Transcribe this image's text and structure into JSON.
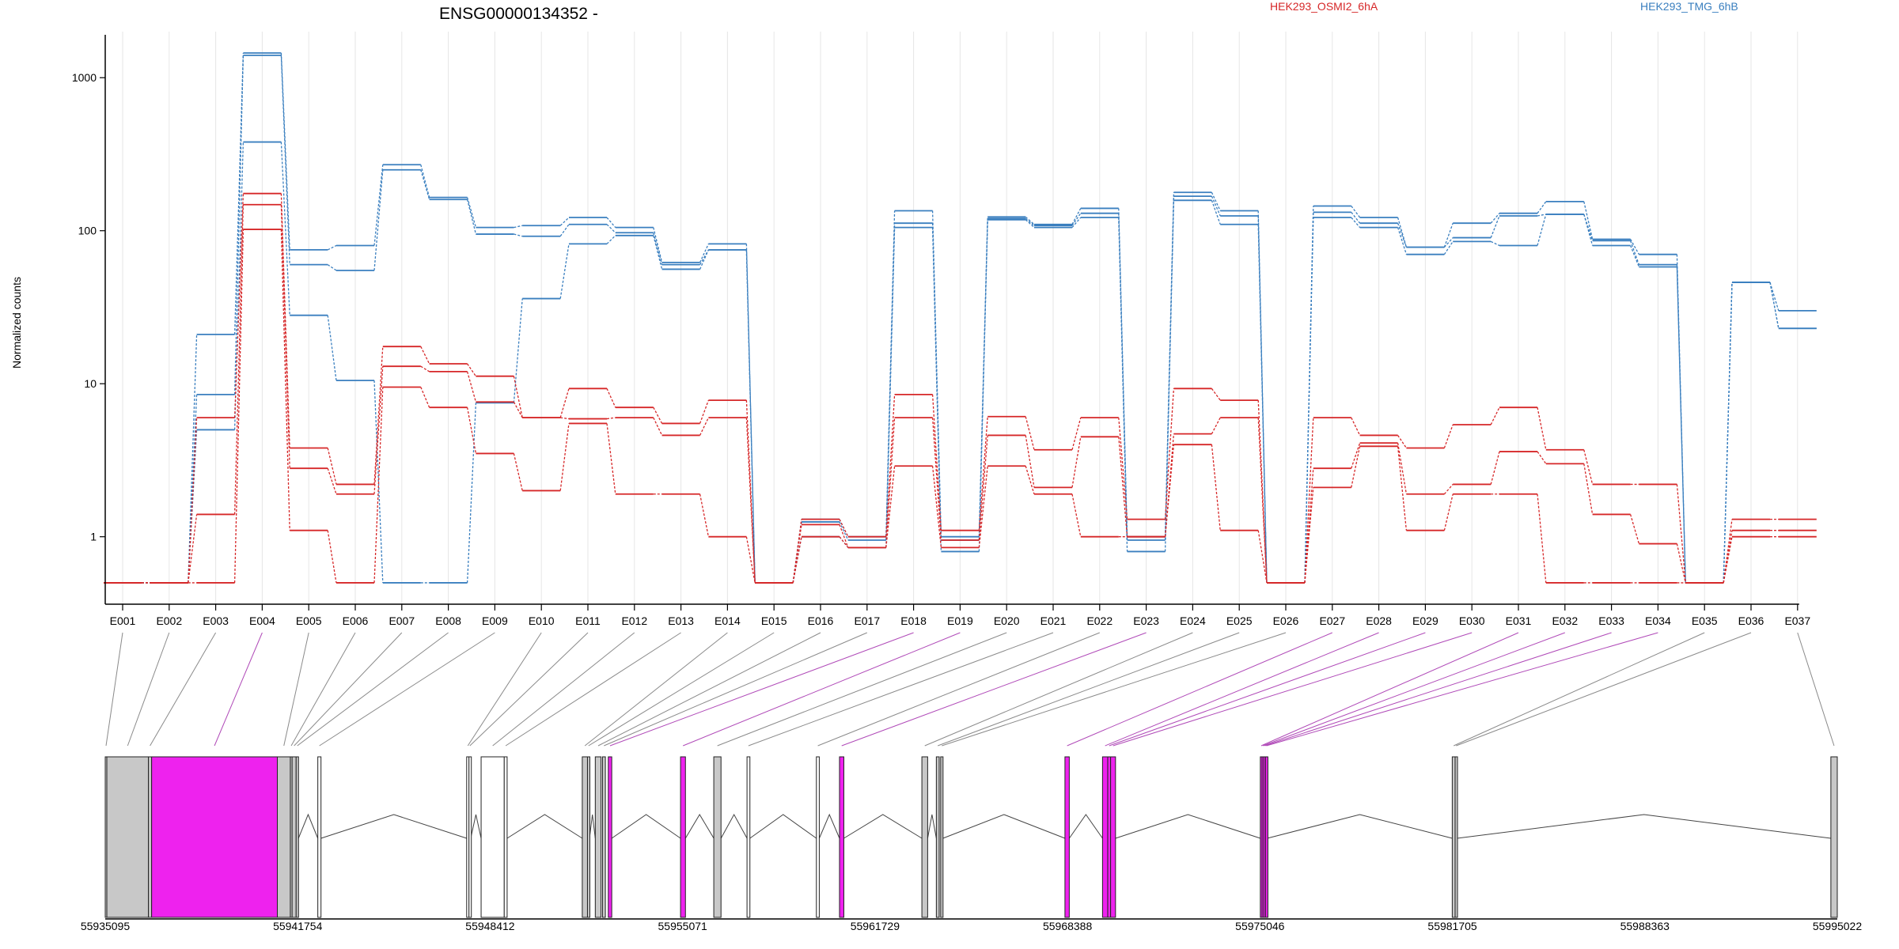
{
  "chart_data": {
    "type": "line",
    "title": "ENSG00000134352 -",
    "ylabel": "Normalized counts",
    "y_scale": "log",
    "y_ticks": [
      1,
      10,
      100,
      1000
    ],
    "y_tick_labels": [
      "1",
      "10",
      "100",
      "1000"
    ],
    "ylim": [
      0.38,
      2000
    ],
    "grid": "vertical lines",
    "legend": "top",
    "colors": {
      "OSMI2": "#d62728",
      "TMG": "#3a7fbf"
    },
    "categories": [
      "E001",
      "E002",
      "E003",
      "E004",
      "E005",
      "E006",
      "E007",
      "E008",
      "E009",
      "E010",
      "E011",
      "E012",
      "E013",
      "E014",
      "E015",
      "E016",
      "E017",
      "E018",
      "E019",
      "E020",
      "E021",
      "E022",
      "E023",
      "E024",
      "E025",
      "E026",
      "E027",
      "E028",
      "E029",
      "E030",
      "E031",
      "E032",
      "E033",
      "E034",
      "E035",
      "E036",
      "E037"
    ],
    "series": [
      {
        "name": "HEK293_TMG_6hB",
        "group": "TMG",
        "values": [
          0.5,
          0.5,
          21,
          1450,
          75,
          80,
          270,
          165,
          105,
          108,
          122,
          105,
          62,
          82,
          0.5,
          1.3,
          1.0,
          135,
          1.0,
          123,
          110,
          140,
          1.0,
          178,
          135,
          0.5,
          145,
          122,
          78,
          112,
          130,
          155,
          88,
          70,
          0.5,
          46,
          30
        ]
      },
      {
        "name": "",
        "group": "TMG",
        "values": [
          0.5,
          0.5,
          8.5,
          1400,
          60,
          55,
          250,
          160,
          95,
          92,
          110,
          97,
          60,
          75,
          0.5,
          1.25,
          0.95,
          112,
          0.95,
          120,
          108,
          130,
          0.95,
          168,
          125,
          0.5,
          132,
          112,
          78,
          90,
          125,
          128,
          86,
          60,
          0.5,
          46,
          23
        ]
      },
      {
        "name": "",
        "group": "TMG",
        "values": [
          0.5,
          0.5,
          5.0,
          380,
          28,
          10.5,
          0.5,
          0.5,
          7.5,
          36,
          82,
          93,
          56,
          75,
          0.5,
          1.0,
          0.85,
          105,
          0.8,
          118,
          105,
          122,
          0.8,
          158,
          110,
          0.5,
          122,
          105,
          70,
          85,
          80,
          128,
          80,
          58,
          0.5,
          46,
          23
        ]
      },
      {
        "name": "HEK293_OSMI2_6hA",
        "group": "OSMI2",
        "values": [
          0.5,
          0.5,
          6.0,
          175,
          3.8,
          2.2,
          17.5,
          13.5,
          11.2,
          6.0,
          9.3,
          7.0,
          5.5,
          7.8,
          0.5,
          1.3,
          1.0,
          8.5,
          1.1,
          6.1,
          3.7,
          6.0,
          1.3,
          9.3,
          7.8,
          0.5,
          6.0,
          4.6,
          3.8,
          5.4,
          7.0,
          3.7,
          2.2,
          2.2,
          0.5,
          1.3,
          1.3
        ]
      },
      {
        "name": "",
        "group": "OSMI2",
        "values": [
          0.5,
          0.5,
          1.4,
          148,
          2.8,
          1.9,
          13.0,
          12.0,
          7.6,
          6.0,
          5.9,
          6.0,
          4.6,
          6.0,
          0.5,
          1.2,
          0.85,
          6.0,
          0.95,
          4.6,
          2.1,
          4.5,
          1.0,
          4.7,
          6.0,
          0.5,
          2.8,
          4.1,
          1.9,
          2.2,
          3.6,
          3.0,
          1.4,
          0.9,
          0.5,
          1.1,
          1.1
        ]
      },
      {
        "name": "",
        "group": "OSMI2",
        "values": [
          0.5,
          0.5,
          0.5,
          102,
          1.1,
          0.5,
          9.5,
          7.0,
          3.5,
          2.0,
          5.5,
          1.9,
          1.9,
          1.0,
          0.5,
          1.0,
          0.85,
          2.9,
          0.85,
          2.9,
          1.9,
          1.0,
          1.0,
          4.0,
          1.1,
          0.5,
          2.1,
          3.9,
          1.1,
          1.9,
          1.9,
          0.5,
          0.5,
          0.5,
          0.5,
          1.0,
          1.0
        ]
      }
    ],
    "gene_model": {
      "genomic_ticks": [
        "55935095",
        "55941754",
        "55948412",
        "55955071",
        "55961729",
        "55968388",
        "55975046",
        "55981705",
        "55988363",
        "55995022"
      ],
      "exons": [
        {
          "id": "E001",
          "start": 55935095,
          "end": 55935150,
          "fill": "#c8c8c8",
          "highlight": false
        },
        {
          "id": "E002",
          "start": 55935150,
          "end": 55936590,
          "fill": "#c8c8c8",
          "highlight": false
        },
        {
          "id": "E003",
          "start": 55936590,
          "end": 55936700,
          "fill": "#c8c8c8",
          "highlight": false
        },
        {
          "id": "E004",
          "start": 55936700,
          "end": 55941050,
          "fill": "#ee22ee",
          "highlight": true
        },
        {
          "id": "E005",
          "start": 55941050,
          "end": 55941500,
          "fill": "#c8c8c8",
          "highlight": false
        },
        {
          "id": "E006",
          "start": 55941500,
          "end": 55941560,
          "fill": "#c8c8c8",
          "highlight": false
        },
        {
          "id": "E007",
          "start": 55941560,
          "end": 55941700,
          "fill": "#c8c8c8",
          "highlight": false
        },
        {
          "id": "E008",
          "start": 55941700,
          "end": 55941780,
          "fill": "#c8c8c8",
          "highlight": false
        },
        {
          "id": "E009",
          "start": 55942450,
          "end": 55942560,
          "fill": "#ffffff",
          "highlight": false
        },
        {
          "id": "E010",
          "start": 55947600,
          "end": 55947680,
          "fill": "#ffffff",
          "highlight": false
        },
        {
          "id": "E011",
          "start": 55947680,
          "end": 55947740,
          "fill": "#ffffff",
          "highlight": false
        },
        {
          "id": "E012",
          "start": 55948100,
          "end": 55948900,
          "fill": "#ffffff",
          "highlight": false
        },
        {
          "id": "E013",
          "start": 55948900,
          "end": 55949000,
          "fill": "#ffffff",
          "highlight": false
        },
        {
          "id": "E014",
          "start": 55951600,
          "end": 55951780,
          "fill": "#c8c8c8",
          "highlight": false
        },
        {
          "id": "E015",
          "start": 55951780,
          "end": 55951850,
          "fill": "#c8c8c8",
          "highlight": false
        },
        {
          "id": "E016",
          "start": 55952050,
          "end": 55952250,
          "fill": "#c8c8c8",
          "highlight": false
        },
        {
          "id": "E017",
          "start": 55952300,
          "end": 55952400,
          "fill": "#c8c8c8",
          "highlight": false
        },
        {
          "id": "E018",
          "start": 55952500,
          "end": 55952620,
          "fill": "#ee22ee",
          "highlight": true
        },
        {
          "id": "E019",
          "start": 55955000,
          "end": 55955170,
          "fill": "#ee22ee",
          "highlight": true
        },
        {
          "id": "E020",
          "start": 55956150,
          "end": 55956400,
          "fill": "#c8c8c8",
          "highlight": false
        },
        {
          "id": "E021",
          "start": 55957300,
          "end": 55957400,
          "fill": "#ffffff",
          "highlight": false
        },
        {
          "id": "E022",
          "start": 55959700,
          "end": 55959800,
          "fill": "#ffffff",
          "highlight": false
        },
        {
          "id": "E023",
          "start": 55960500,
          "end": 55960650,
          "fill": "#ee22ee",
          "highlight": true
        },
        {
          "id": "E024",
          "start": 55963350,
          "end": 55963550,
          "fill": "#c8c8c8",
          "highlight": false
        },
        {
          "id": "E025",
          "start": 55963850,
          "end": 55963950,
          "fill": "#c8c8c8",
          "highlight": false
        },
        {
          "id": "E026",
          "start": 55964000,
          "end": 55964080,
          "fill": "#c8c8c8",
          "highlight": false
        },
        {
          "id": "E027",
          "start": 55968300,
          "end": 55968450,
          "fill": "#ee22ee",
          "highlight": true
        },
        {
          "id": "E028",
          "start": 55969600,
          "end": 55969780,
          "fill": "#ee22ee",
          "highlight": true
        },
        {
          "id": "E029",
          "start": 55969780,
          "end": 55969880,
          "fill": "#ee22ee",
          "highlight": true
        },
        {
          "id": "E030",
          "start": 55969880,
          "end": 55970050,
          "fill": "#ee22ee",
          "highlight": true
        },
        {
          "id": "E031",
          "start": 55975060,
          "end": 55975120,
          "fill": "#ee22ee",
          "highlight": true
        },
        {
          "id": "E032",
          "start": 55975120,
          "end": 55975180,
          "fill": "#ee22ee",
          "highlight": true
        },
        {
          "id": "E033",
          "start": 55975180,
          "end": 55975240,
          "fill": "#ee22ee",
          "highlight": true
        },
        {
          "id": "E034",
          "start": 55975240,
          "end": 55975300,
          "fill": "#ee22ee",
          "highlight": true
        },
        {
          "id": "E035",
          "start": 55981700,
          "end": 55981800,
          "fill": "#c8c8c8",
          "highlight": false
        },
        {
          "id": "E036",
          "start": 55981800,
          "end": 55981870,
          "fill": "#c8c8c8",
          "highlight": false
        },
        {
          "id": "E037",
          "start": 55994800,
          "end": 55995022,
          "fill": "#c8c8c8",
          "highlight": false
        }
      ]
    }
  }
}
